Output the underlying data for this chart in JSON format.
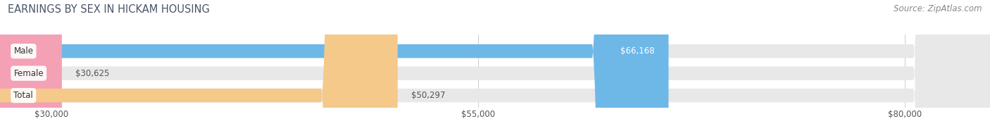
{
  "title": "EARNINGS BY SEX IN HICKAM HOUSING",
  "source": "Source: ZipAtlas.com",
  "categories": [
    "Male",
    "Female",
    "Total"
  ],
  "values": [
    66168,
    30625,
    50297
  ],
  "bar_colors": [
    "#6eb8e8",
    "#f4a0b5",
    "#f5c98a"
  ],
  "bar_bg_color": "#e8e8e8",
  "xlim": [
    0,
    85000
  ],
  "xview_min": 27000,
  "xticks": [
    30000,
    55000,
    80000
  ],
  "xtick_labels": [
    "$30,000",
    "$55,000",
    "$80,000"
  ],
  "title_fontsize": 10.5,
  "source_fontsize": 8.5,
  "bar_label_fontsize": 8.5,
  "cat_label_fontsize": 8.5,
  "background_color": "#ffffff",
  "value_labels": [
    "$66,168",
    "$30,625",
    "$50,297"
  ],
  "value_label_colors": [
    "#ffffff",
    "#555555",
    "#555555"
  ],
  "value_label_inside": [
    true,
    false,
    false
  ]
}
